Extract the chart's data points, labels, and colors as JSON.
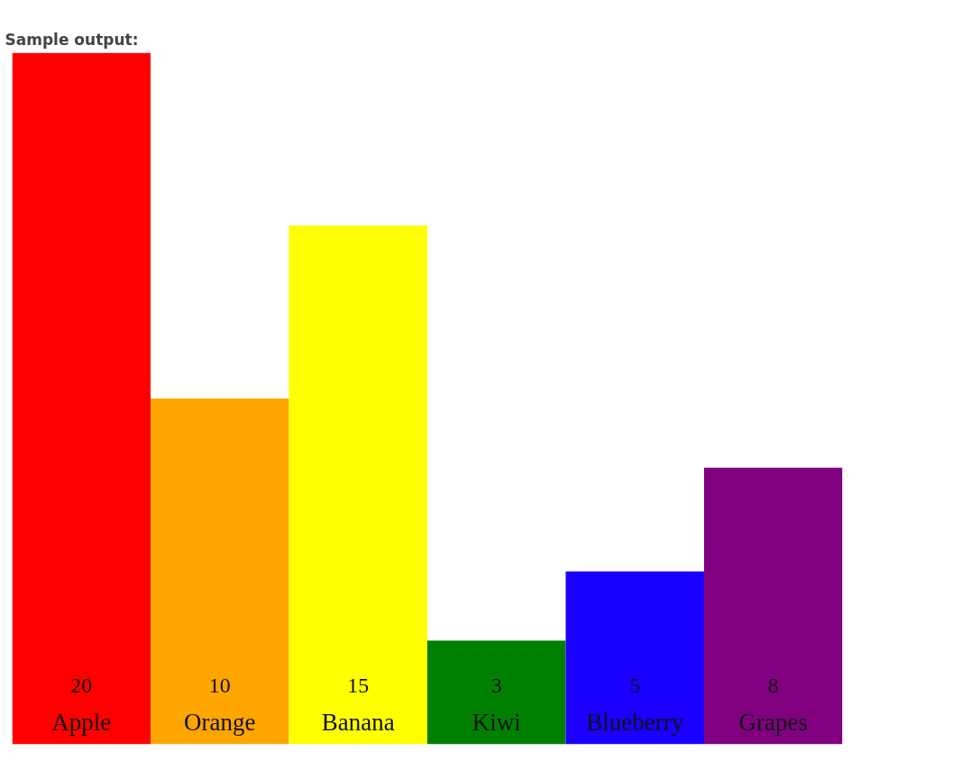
{
  "chart_data": {
    "type": "bar",
    "title": "Sample output:",
    "categories": [
      "Apple",
      "Orange",
      "Banana",
      "Kiwi",
      "Blueberry",
      "Grapes"
    ],
    "values": [
      20,
      10,
      15,
      3,
      5,
      8
    ],
    "colors": [
      "#ff0000",
      "#ffa500",
      "#ffff00",
      "#008000",
      "#1a00ff",
      "#800080"
    ],
    "data_labels": true
  }
}
